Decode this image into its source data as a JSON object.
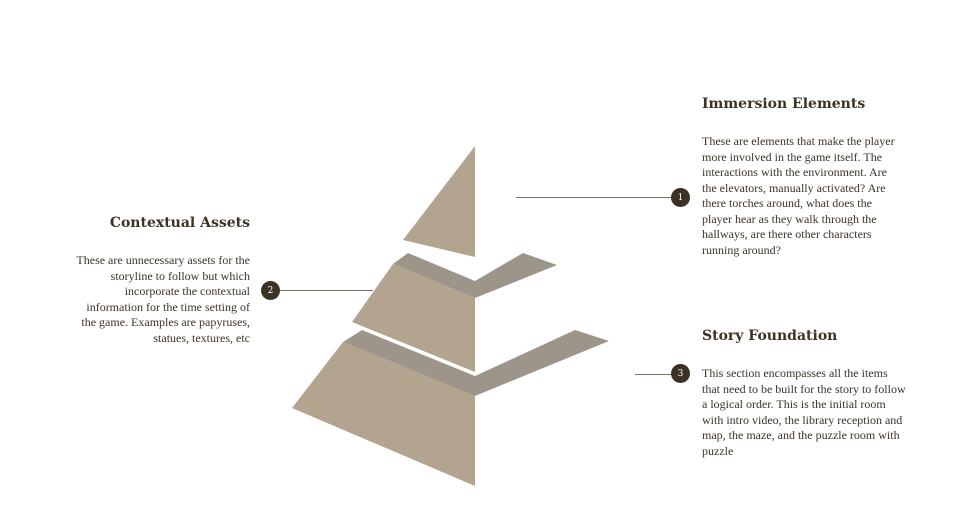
{
  "sections": [
    {
      "number": "1",
      "title": "Immersion Elements",
      "description": "These are elements that make the player more involved in the game itself. The interactions with the environment. Are the elevators, manually activated? Are there torches around, what does the player hear as they walk through the hallways, are there other characters running around?"
    },
    {
      "number": "2",
      "title": "Contextual Assets",
      "description": "These are unnecessary assets for the storyline to follow but which incorporate the contextual information for the time setting of the game. Examples are papyruses, statues, textures, etc"
    },
    {
      "number": "3",
      "title": "Story Foundation",
      "description": "This section encompasses all the items that need to be built for the story to follow a logical order. This is the initial room with intro video,  the library reception and map, the maze, and the puzzle room with puzzle"
    }
  ],
  "colors": {
    "tier_fill": "#b2a48e",
    "shelf_fill": "#9e958a",
    "badge": "#3b3124",
    "text": "#3b3327"
  }
}
